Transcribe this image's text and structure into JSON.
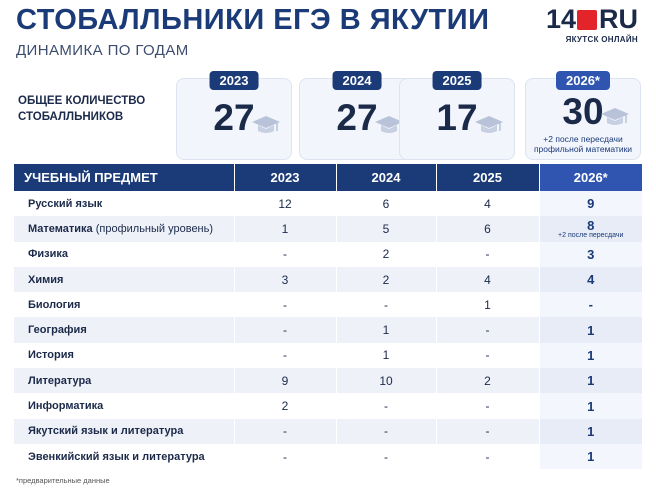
{
  "header": {
    "title": "СТОБАЛЛЬНИКИ ЕГЭ В ЯКУТИИ",
    "subtitle": "ДИНАМИКА ПО ГОДАМ"
  },
  "logo": {
    "left": "14",
    "right": "RU",
    "sub": "ЯКУТСК ОНЛАЙН",
    "accent_color": "#e3242b"
  },
  "totals": {
    "label": "ОБЩЕЕ КОЛИЧЕСТВО СТОБАЛЛЬНИКОВ",
    "icon": "graduation-cap-icon",
    "cards": [
      {
        "year": "2023",
        "value": "27",
        "note": ""
      },
      {
        "year": "2024",
        "value": "27",
        "note": ""
      },
      {
        "year": "2025",
        "value": "17",
        "note": ""
      },
      {
        "year": "2026*",
        "value": "30",
        "note": "+2 после пересдачи профильной математики"
      }
    ]
  },
  "table": {
    "headers": [
      "УЧЕБНЫЙ ПРЕДМЕТ",
      "2023",
      "2024",
      "2025",
      "2026*"
    ],
    "rows": [
      {
        "subject": "Русский язык",
        "extra": "",
        "v2023": "12",
        "v2024": "6",
        "v2025": "4",
        "v2026": "9",
        "note": ""
      },
      {
        "subject": "Математика",
        "extra": " (профильный уровень)",
        "v2023": "1",
        "v2024": "5",
        "v2025": "6",
        "v2026": "8",
        "note": "+2 после пересдачи"
      },
      {
        "subject": "Физика",
        "extra": "",
        "v2023": "-",
        "v2024": "2",
        "v2025": "-",
        "v2026": "3",
        "note": ""
      },
      {
        "subject": "Химия",
        "extra": "",
        "v2023": "3",
        "v2024": "2",
        "v2025": "4",
        "v2026": "4",
        "note": ""
      },
      {
        "subject": "Биология",
        "extra": "",
        "v2023": "-",
        "v2024": "-",
        "v2025": "1",
        "v2026": "-",
        "note": ""
      },
      {
        "subject": "География",
        "extra": "",
        "v2023": "-",
        "v2024": "1",
        "v2025": "-",
        "v2026": "1",
        "note": ""
      },
      {
        "subject": "История",
        "extra": "",
        "v2023": "-",
        "v2024": "1",
        "v2025": "-",
        "v2026": "1",
        "note": ""
      },
      {
        "subject": "Литература",
        "extra": "",
        "v2023": "9",
        "v2024": "10",
        "v2025": "2",
        "v2026": "1",
        "note": ""
      },
      {
        "subject": "Информатика",
        "extra": "",
        "v2023": "2",
        "v2024": "-",
        "v2025": "-",
        "v2026": "1",
        "note": ""
      },
      {
        "subject": "Якутский язык и литература",
        "extra": "",
        "v2023": "-",
        "v2024": "-",
        "v2025": "-",
        "v2026": "1",
        "note": ""
      },
      {
        "subject": "Эвенкийский язык и литература",
        "extra": "",
        "v2023": "-",
        "v2024": "-",
        "v2025": "-",
        "v2026": "1",
        "note": ""
      }
    ]
  },
  "footnote": "*предварительные данные",
  "chart_data": {
    "type": "table",
    "title": "СТОБАЛЛЬНИКИ ЕГЭ В ЯКУТИИ",
    "subtitle": "ДИНАМИКА ПО ГОДАМ",
    "categories": [
      "2023",
      "2024",
      "2025",
      "2026*"
    ],
    "totals": [
      27,
      27,
      17,
      30
    ],
    "series": [
      {
        "name": "Русский язык",
        "values": [
          12,
          6,
          4,
          9
        ]
      },
      {
        "name": "Математика (профильный уровень)",
        "values": [
          1,
          5,
          6,
          8
        ]
      },
      {
        "name": "Физика",
        "values": [
          null,
          2,
          null,
          3
        ]
      },
      {
        "name": "Химия",
        "values": [
          3,
          2,
          4,
          4
        ]
      },
      {
        "name": "Биология",
        "values": [
          null,
          null,
          1,
          null
        ]
      },
      {
        "name": "География",
        "values": [
          null,
          1,
          null,
          1
        ]
      },
      {
        "name": "История",
        "values": [
          null,
          1,
          null,
          1
        ]
      },
      {
        "name": "Литература",
        "values": [
          9,
          10,
          2,
          1
        ]
      },
      {
        "name": "Информатика",
        "values": [
          2,
          null,
          null,
          1
        ]
      },
      {
        "name": "Якутский язык и литература",
        "values": [
          null,
          null,
          null,
          1
        ]
      },
      {
        "name": "Эвенкийский язык и литература",
        "values": [
          null,
          null,
          null,
          1
        ]
      }
    ]
  }
}
